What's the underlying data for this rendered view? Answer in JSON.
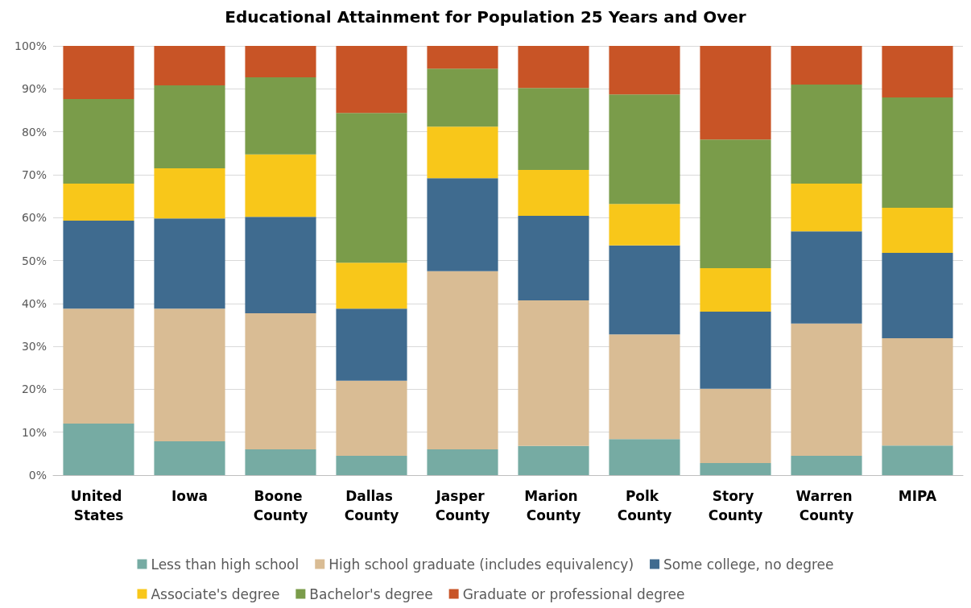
{
  "chart_data": {
    "type": "bar",
    "stacked": true,
    "title": "Educational Attainment for Population 25 Years and Over",
    "categories": [
      "United States",
      "Iowa",
      "Boone County",
      "Dallas County",
      "Jasper County",
      "Marion County",
      "Polk County",
      "Story County",
      "Warren County",
      "MIPA"
    ],
    "series": [
      {
        "name": "Less than high school",
        "color": "#76aba3",
        "values": [
          12.0,
          7.9,
          6.0,
          4.5,
          6.0,
          6.8,
          8.4,
          2.8,
          4.5,
          6.9
        ]
      },
      {
        "name": "High school graduate (includes equivalency)",
        "color": "#d9bc94",
        "values": [
          26.8,
          30.9,
          31.7,
          17.5,
          41.5,
          33.9,
          24.4,
          17.3,
          30.8,
          25.0
        ]
      },
      {
        "name": "Some college, no degree",
        "color": "#3f6b8f",
        "values": [
          20.5,
          21.0,
          22.5,
          16.8,
          21.7,
          19.7,
          20.7,
          18.0,
          21.5,
          19.9
        ]
      },
      {
        "name": "Associate's degree",
        "color": "#f8c71a",
        "values": [
          8.6,
          11.7,
          14.5,
          10.7,
          12.0,
          10.7,
          9.7,
          10.1,
          11.1,
          10.5
        ]
      },
      {
        "name": "Bachelor's degree",
        "color": "#7a9c4a",
        "values": [
          19.7,
          19.3,
          18.0,
          34.9,
          13.5,
          19.1,
          25.5,
          30.0,
          23.1,
          25.7
        ]
      },
      {
        "name": "Graduate or professional degree",
        "color": "#c85426",
        "values": [
          12.4,
          9.2,
          7.3,
          15.6,
          5.3,
          9.8,
          11.3,
          21.8,
          9.0,
          12.0
        ]
      }
    ],
    "ylim": [
      0,
      100
    ],
    "yticks": [
      {
        "value": 0,
        "label": "0%"
      },
      {
        "value": 10,
        "label": "10%"
      },
      {
        "value": 20,
        "label": "20%"
      },
      {
        "value": 30,
        "label": "30%"
      },
      {
        "value": 40,
        "label": "40%"
      },
      {
        "value": 50,
        "label": "50%"
      },
      {
        "value": 60,
        "label": "60%"
      },
      {
        "value": 70,
        "label": "70%"
      },
      {
        "value": 80,
        "label": "80%"
      },
      {
        "value": 90,
        "label": "90%"
      },
      {
        "value": 100,
        "label": "100%"
      }
    ],
    "grid": "y",
    "legend": "bottom"
  }
}
